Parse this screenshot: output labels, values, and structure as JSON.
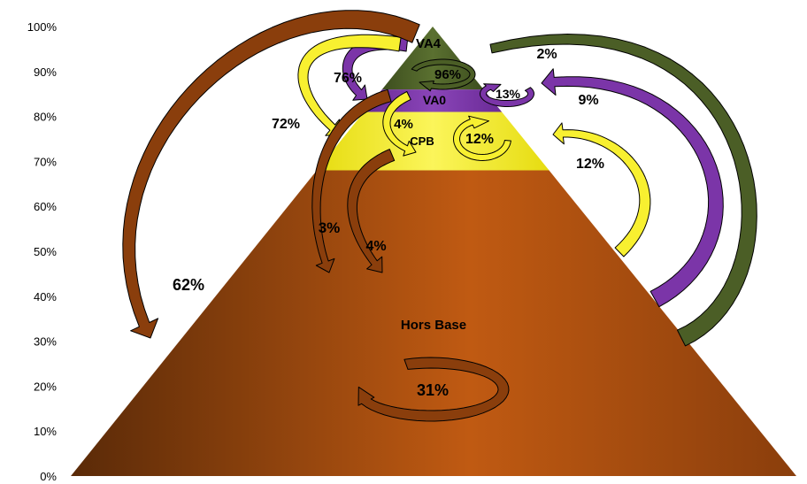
{
  "chart_data": {
    "type": "pyramid",
    "y_axis": {
      "ticks": [
        "0%",
        "10%",
        "20%",
        "30%",
        "40%",
        "50%",
        "60%",
        "70%",
        "80%",
        "90%",
        "100%"
      ]
    },
    "levels": [
      {
        "name": "Hors Base",
        "from": 0,
        "to": 68,
        "color": "#b0520f"
      },
      {
        "name": "CPB",
        "from": 68,
        "to": 81,
        "color": "#f6ef18"
      },
      {
        "name": "VA0",
        "from": 81,
        "to": 86,
        "color": "#7b35a8"
      },
      {
        "name": "VA4",
        "from": 86,
        "to": 100,
        "color": "#4b5e26"
      }
    ],
    "flows": [
      {
        "from": "VA4",
        "to": "VA4",
        "value": "96%",
        "color": "#4b5e26"
      },
      {
        "from": "VA4",
        "to": "VA0",
        "value": "76%",
        "color": "#7b35a8"
      },
      {
        "from": "VA4",
        "to": "CPB",
        "value": "72%",
        "color": "#f6ef18"
      },
      {
        "from": "VA4",
        "to": "Hors Base",
        "value": "62%",
        "color": "#8a3e0c"
      },
      {
        "from": "VA0",
        "to": "VA0",
        "value": "13%",
        "color": "#7b35a8"
      },
      {
        "from": "VA0",
        "to": "CPB",
        "value": "4%",
        "color": "#f6ef18"
      },
      {
        "from": "VA0",
        "to": "Hors Base",
        "value": "3%",
        "color": "#8a3e0c"
      },
      {
        "from": "CPB",
        "to": "CPB",
        "value": "12%",
        "color": "#f6ef18"
      },
      {
        "from": "CPB",
        "to": "Hors Base",
        "value": "4%",
        "color": "#8a3e0c"
      },
      {
        "from": "Hors Base",
        "to": "Hors Base",
        "value": "31%",
        "color": "#8a3e0c"
      },
      {
        "from": "CPB",
        "to": "VA4",
        "value": "12%",
        "color": "#f6ef18"
      },
      {
        "from": "Hors Base",
        "to": "VA0",
        "value": "9%",
        "color": "#7b35a8"
      },
      {
        "from": "Hors Base",
        "to": "VA4",
        "value": "2%",
        "color": "#4b5e26"
      }
    ]
  }
}
